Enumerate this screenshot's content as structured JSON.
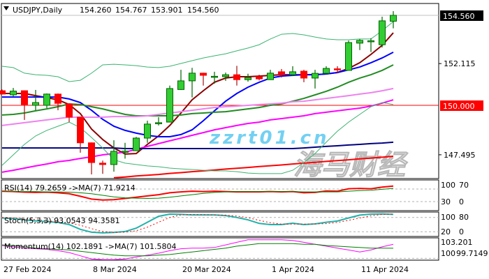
{
  "header": {
    "symbol": "USDJPY,Daily",
    "open": "154.260",
    "high": "154.767",
    "low": "153.901",
    "close": "154.560",
    "menu_icon": "triangle-down-icon"
  },
  "watermark": {
    "logo": "海马财经",
    "site": "zzrt01.cn"
  },
  "chart_data": {
    "type": "candlestick",
    "title": "USDJPY,Daily",
    "candle_fields": [
      "date",
      "open",
      "high",
      "low",
      "close"
    ],
    "candles": [
      [
        "27 Feb 2024",
        150.74,
        150.8,
        150.55,
        150.57
      ],
      [
        "28 Feb 2024",
        150.53,
        150.88,
        150.46,
        150.72
      ],
      [
        "29 Feb 2024",
        150.74,
        150.76,
        149.26,
        150.04
      ],
      [
        "1 Mar 2024",
        150.0,
        150.78,
        149.75,
        150.14
      ],
      [
        "4 Mar 2024",
        150.0,
        150.6,
        149.86,
        150.57
      ],
      [
        "5 Mar 2024",
        150.57,
        150.6,
        149.75,
        150.1
      ],
      [
        "6 Mar 2024",
        150.07,
        150.1,
        149.15,
        149.4
      ],
      [
        "7 Mar 2024",
        149.4,
        149.42,
        147.6,
        148.1
      ],
      [
        "8 Mar 2024",
        148.1,
        148.12,
        146.5,
        147.1
      ],
      [
        "11 Mar 2024",
        147.07,
        147.2,
        146.53,
        147.0
      ],
      [
        "12 Mar 2024",
        147.0,
        148.23,
        146.64,
        147.67
      ],
      [
        "13 Mar 2024",
        147.62,
        148.1,
        147.3,
        147.68
      ],
      [
        "14 Mar 2024",
        147.7,
        148.4,
        147.7,
        148.34
      ],
      [
        "15 Mar 2024",
        148.34,
        149.22,
        148.1,
        149.05
      ],
      [
        "18 Mar 2024",
        149.1,
        149.4,
        148.98,
        149.12
      ],
      [
        "19 Mar 2024",
        149.15,
        151.0,
        149.15,
        150.85
      ],
      [
        "20 Mar 2024",
        150.8,
        151.8,
        150.78,
        151.24
      ],
      [
        "21 Mar 2024",
        151.24,
        151.9,
        150.4,
        151.63
      ],
      [
        "22 Mar 2024",
        151.63,
        151.65,
        151.0,
        151.52
      ],
      [
        "25 Mar 2024",
        151.44,
        151.7,
        151.1,
        151.47
      ],
      [
        "26 Mar 2024",
        151.45,
        151.66,
        151.24,
        151.55
      ],
      [
        "27 Mar 2024",
        151.55,
        152.0,
        151.0,
        151.3
      ],
      [
        "28 Mar 2024",
        151.3,
        151.6,
        151.2,
        151.41
      ],
      [
        "29 Mar 2024",
        151.45,
        151.55,
        151.26,
        151.34
      ],
      [
        "1 Apr 2024",
        151.3,
        151.8,
        151.3,
        151.63
      ],
      [
        "2 Apr 2024",
        151.7,
        151.84,
        151.41,
        151.55
      ],
      [
        "3 Apr 2024",
        151.55,
        151.98,
        151.48,
        151.7
      ],
      [
        "4 Apr 2024",
        151.73,
        151.8,
        151.17,
        151.38
      ],
      [
        "5 Apr 2024",
        151.38,
        151.8,
        150.85,
        151.62
      ],
      [
        "8 Apr 2024",
        151.62,
        151.98,
        151.62,
        151.87
      ],
      [
        "9 Apr 2024",
        151.85,
        151.98,
        151.62,
        151.8
      ],
      [
        "10 Apr 2024",
        151.77,
        153.28,
        151.77,
        153.18
      ],
      [
        "11 Apr 2024",
        153.15,
        153.36,
        152.8,
        153.29
      ],
      [
        "12 Apr 2024",
        153.25,
        153.4,
        152.7,
        153.27
      ],
      [
        "15 Apr 2024",
        153.07,
        154.49,
        152.93,
        154.28
      ],
      [
        "16 Apr 2024",
        154.26,
        154.77,
        153.9,
        154.56
      ]
    ],
    "colors": {
      "bull_body": "#32CD32",
      "bull_border": "#006400",
      "bear_body": "#FF0000",
      "bear_wick": "#A01010"
    },
    "overlays": [
      {
        "color": "#8B0000",
        "width": 2,
        "values": [
          150.6,
          150.6,
          150.6,
          150.49,
          150.39,
          150.28,
          150.04,
          149.58,
          148.8,
          148.27,
          147.84,
          147.53,
          147.56,
          148.02,
          148.45,
          148.98,
          149.61,
          150.28,
          150.74,
          151.17,
          151.38,
          151.45,
          151.45,
          151.48,
          151.52,
          151.55,
          151.55,
          151.55,
          151.55,
          151.59,
          151.66,
          151.87,
          152.16,
          152.58,
          153.04,
          153.67
        ]
      },
      {
        "color": "#0000FF",
        "width": 2,
        "values": [
          150.42,
          150.42,
          150.42,
          150.42,
          150.42,
          150.42,
          150.32,
          150.14,
          149.75,
          149.29,
          148.94,
          148.73,
          148.59,
          148.48,
          148.41,
          148.41,
          148.52,
          148.76,
          149.22,
          149.72,
          150.21,
          150.6,
          150.92,
          151.17,
          151.38,
          151.48,
          151.52,
          151.55,
          151.55,
          151.59,
          151.66,
          151.8,
          151.94,
          152.16,
          152.4,
          152.69
        ]
      },
      {
        "color": "#228B22",
        "width": 2,
        "values": [
          149.51,
          149.54,
          149.61,
          149.72,
          149.82,
          149.93,
          150.07,
          150.04,
          149.93,
          149.82,
          149.68,
          149.54,
          149.47,
          149.47,
          149.47,
          149.47,
          149.51,
          149.58,
          149.61,
          149.65,
          149.68,
          149.75,
          149.82,
          149.89,
          150.0,
          150.07,
          150.21,
          150.35,
          150.53,
          150.71,
          150.92,
          151.17,
          151.38,
          151.55,
          151.77,
          152.05
        ]
      },
      {
        "color": "#EE82EE",
        "width": 2,
        "values": [
          148.98,
          149.05,
          149.12,
          149.19,
          149.26,
          149.33,
          149.4,
          149.4,
          149.4,
          149.4,
          149.43,
          149.43,
          149.43,
          149.47,
          149.54,
          149.61,
          149.68,
          149.75,
          149.82,
          149.89,
          149.93,
          149.96,
          150.0,
          150.04,
          150.07,
          150.11,
          150.18,
          150.21,
          150.28,
          150.35,
          150.42,
          150.49,
          150.57,
          150.64,
          150.74,
          150.85
        ]
      },
      {
        "color": "#FF00FF",
        "width": 2,
        "values": [
          146.61,
          146.71,
          146.82,
          146.93,
          147.03,
          147.14,
          147.21,
          147.31,
          147.39,
          147.49,
          147.56,
          147.63,
          147.77,
          147.92,
          148.06,
          148.2,
          148.34,
          148.48,
          148.62,
          148.76,
          148.87,
          148.98,
          149.08,
          149.15,
          149.26,
          149.33,
          149.4,
          149.47,
          149.58,
          149.65,
          149.72,
          149.79,
          149.86,
          149.96,
          150.11,
          150.28
        ]
      },
      {
        "color": "#000080",
        "width": 2,
        "values": [
          147.84,
          147.84,
          147.84,
          147.84,
          147.84,
          147.84,
          147.84,
          147.84,
          147.84,
          147.84,
          147.84,
          147.81,
          147.81,
          147.81,
          147.81,
          147.81,
          147.81,
          147.81,
          147.81,
          147.81,
          147.81,
          147.81,
          147.81,
          147.81,
          147.81,
          147.81,
          147.81,
          147.84,
          147.88,
          147.92,
          147.95,
          147.99,
          148.02,
          148.06,
          148.09,
          148.13
        ]
      },
      {
        "color": "#FF0000",
        "width": 2,
        "values": [
          null,
          null,
          null,
          null,
          null,
          null,
          null,
          null,
          null,
          null,
          146.33,
          146.37,
          146.42,
          146.46,
          146.5,
          146.55,
          146.59,
          146.64,
          146.68,
          146.72,
          146.77,
          146.81,
          146.85,
          146.9,
          146.94,
          146.98,
          147.03,
          147.07,
          147.11,
          147.16,
          147.2,
          147.24,
          147.29,
          147.33,
          147.37,
          147.42
        ]
      },
      {
        "color": "#3CB371",
        "width": 1,
        "values": [
          151.98,
          151.91,
          151.63,
          151.55,
          151.52,
          151.45,
          151.2,
          151.27,
          151.63,
          152.05,
          152.08,
          152.05,
          152.01,
          151.94,
          151.91,
          151.98,
          152.12,
          152.26,
          152.4,
          152.51,
          152.61,
          152.76,
          152.9,
          153.07,
          153.36,
          153.6,
          153.64,
          153.57,
          153.46,
          153.36,
          153.32,
          153.32,
          153.36,
          153.36,
          153.78,
          154.24
        ]
      },
      {
        "color": "#3CB371",
        "width": 1,
        "values": [
          146.96,
          147.49,
          148.02,
          148.45,
          148.73,
          148.94,
          149.15,
          148.87,
          148.37,
          147.84,
          147.24,
          147.07,
          147.0,
          146.93,
          146.89,
          146.82,
          146.78,
          146.75,
          146.71,
          146.68,
          146.68,
          146.64,
          146.57,
          146.54,
          146.54,
          146.54,
          146.71,
          147.1,
          147.56,
          148.13,
          148.69,
          149.15,
          149.54,
          149.93,
          150.14,
          150.04
        ]
      }
    ],
    "horizontal_lines": [
      {
        "price": 154.56,
        "color": "#C0C0C0"
      },
      {
        "price": 150.0,
        "color": "#FF0000"
      }
    ],
    "price_axis": {
      "ticks": [
        "152.115",
        "147.495"
      ],
      "highlight_labels": [
        {
          "text": "154.560",
          "bg": "#000000",
          "fg": "#FFFFFF"
        },
        {
          "text": "150.000",
          "bg": "#FF0000",
          "fg": "#FFFFFF"
        }
      ]
    },
    "date_axis": [
      "27 Feb 2024",
      "8 Mar 2024",
      "20 Mar 2024",
      "1 Apr 2024",
      "11 Apr 2024"
    ],
    "indicators": {
      "rsi": {
        "label": "RSI(14) 79.2659  ->MA(7) 71.9214",
        "ylim": [
          0,
          100
        ],
        "levels": [
          70,
          30
        ],
        "axis_labels": [
          "100",
          "70",
          "30",
          "0"
        ],
        "series": [
          {
            "color": "#FF0000",
            "width": 2,
            "values": [
              63,
              62,
              60,
              59,
              60,
              58,
              55,
              47,
              38,
              35,
              36,
              40,
              44,
              48,
              52,
              58,
              61,
              63,
              62,
              63,
              62,
              61,
              61,
              61,
              62,
              61,
              62,
              58,
              59,
              64,
              63,
              71,
              72,
              71,
              76,
              79.2659
            ]
          },
          {
            "color": "#008000",
            "width": 1,
            "values": [
              62,
              62,
              62,
              62,
              61,
              61,
              60,
              58,
              55,
              50,
              45,
              42,
              41,
              40,
              41,
              44,
              48,
              52,
              56,
              59,
              61,
              62,
              62,
              62,
              62,
              62,
              62,
              61,
              61,
              61,
              61,
              63,
              65,
              66,
              69,
              71.9214
            ]
          }
        ]
      },
      "stoch": {
        "label": "Stoch(5,3,3) 93.0543 94.3581",
        "ylim": [
          0,
          100
        ],
        "levels": [
          80,
          20
        ],
        "axis_labels": [
          "100",
          "80",
          "20",
          "0"
        ],
        "series": [
          {
            "color": "#20B2AA",
            "width": 2,
            "dashed": false,
            "values": [
              78,
              76,
              70,
              66,
              62,
              59,
              50,
              30,
              18,
              15,
              17,
              21,
              35,
              60,
              85,
              94,
              93,
              91,
              91,
              91,
              88,
              80,
              70,
              55,
              50,
              50,
              56,
              50,
              53,
              60,
              65,
              78,
              90,
              94,
              95,
              93.0543
            ]
          },
          {
            "color": "#FF0000",
            "width": 1,
            "dashed": true,
            "values": [
              80,
              78,
              76,
              71,
              66,
              62,
              57,
              47,
              33,
              21,
              17,
              18,
              24,
              39,
              60,
              80,
              91,
              93,
              92,
              91,
              90,
              86,
              79,
              68,
              58,
              52,
              52,
              52,
              53,
              54,
              59,
              68,
              78,
              87,
              93,
              94.3581
            ]
          }
        ]
      },
      "momentum": {
        "label": "Momentum(14) 102.1891  ->MA(7) 101.5804",
        "ylim": [
          99.7149,
          103.201
        ],
        "levels": [
          100
        ],
        "axis_labels": [
          "103.201",
          "100",
          "99.7149"
        ],
        "series": [
          {
            "color": "#FF00FF",
            "width": 1,
            "values": [
              102.0,
              101.8,
              101.6,
              101.5,
              101.4,
              101.2,
              100.9,
              100.4,
              99.9,
              99.8,
              99.8,
              99.9,
              100.2,
              100.5,
              100.8,
              101.2,
              101.5,
              101.6,
              101.6,
              101.7,
              102.1,
              102.5,
              102.9,
              102.9,
              102.9,
              102.9,
              102.8,
              102.5,
              102.2,
              101.9,
              101.6,
              101.3,
              101.0,
              101.3,
              101.8,
              102.1891
            ]
          },
          {
            "color": "#008000",
            "width": 1,
            "values": [
              102.1,
              102.0,
              101.8,
              101.6,
              101.5,
              101.4,
              101.3,
              101.1,
              100.9,
              100.7,
              100.5,
              100.4,
              100.4,
              100.4,
              100.5,
              100.6,
              100.8,
              101.0,
              101.2,
              101.4,
              101.6,
              101.9,
              102.1,
              102.3,
              102.3,
              102.3,
              102.3,
              102.2,
              102.2,
              102.0,
              101.9,
              101.8,
              101.7,
              101.6,
              101.6,
              101.5804
            ]
          }
        ]
      }
    }
  }
}
